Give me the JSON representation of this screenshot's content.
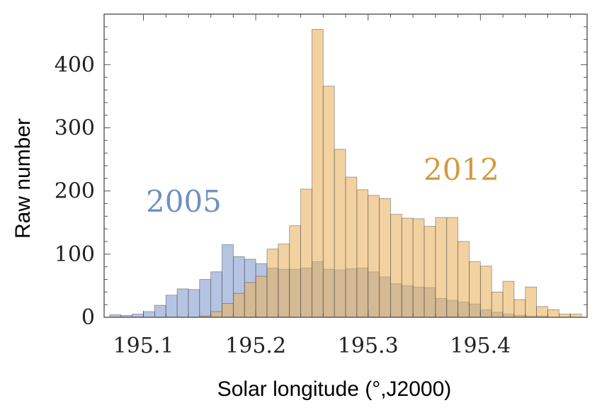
{
  "chart_data": {
    "type": "bar",
    "xlabel": "Solar longitude (°,J2000)",
    "ylabel": "Raw number",
    "xlim": [
      195.065,
      195.495
    ],
    "ylim": [
      0,
      480
    ],
    "xticks": [
      195.1,
      195.2,
      195.3,
      195.4
    ],
    "yticks": [
      0,
      100,
      200,
      300,
      400
    ],
    "xtick_labels": [
      "195.1",
      "195.2",
      "195.3",
      "195.4"
    ],
    "ytick_labels": [
      "0",
      "100",
      "200",
      "300",
      "400"
    ],
    "grid": false,
    "bin_start": 195.07,
    "bin_width": 0.01,
    "series": [
      {
        "name": "2005",
        "color": "#6f8fc4",
        "fill": "rgba(120,148,204,0.55)",
        "values": [
          4,
          3,
          5,
          9,
          19,
          35,
          45,
          44,
          60,
          72,
          115,
          96,
          92,
          85,
          78,
          76,
          76,
          78,
          88,
          76,
          75,
          77,
          78,
          72,
          64,
          53,
          50,
          48,
          47,
          30,
          27,
          24,
          21,
          12,
          8,
          5,
          3,
          2,
          2
        ]
      },
      {
        "name": "2012",
        "color": "#d4a04a",
        "fill": "rgba(232,178,92,0.58)",
        "values": [
          0,
          0,
          0,
          0,
          0,
          0,
          0,
          0,
          2,
          9,
          22,
          38,
          55,
          65,
          108,
          116,
          145,
          203,
          456,
          366,
          266,
          222,
          202,
          193,
          188,
          163,
          157,
          156,
          144,
          158,
          158,
          120,
          88,
          81,
          40,
          57,
          28,
          48,
          17,
          12,
          5,
          5
        ]
      }
    ]
  }
}
